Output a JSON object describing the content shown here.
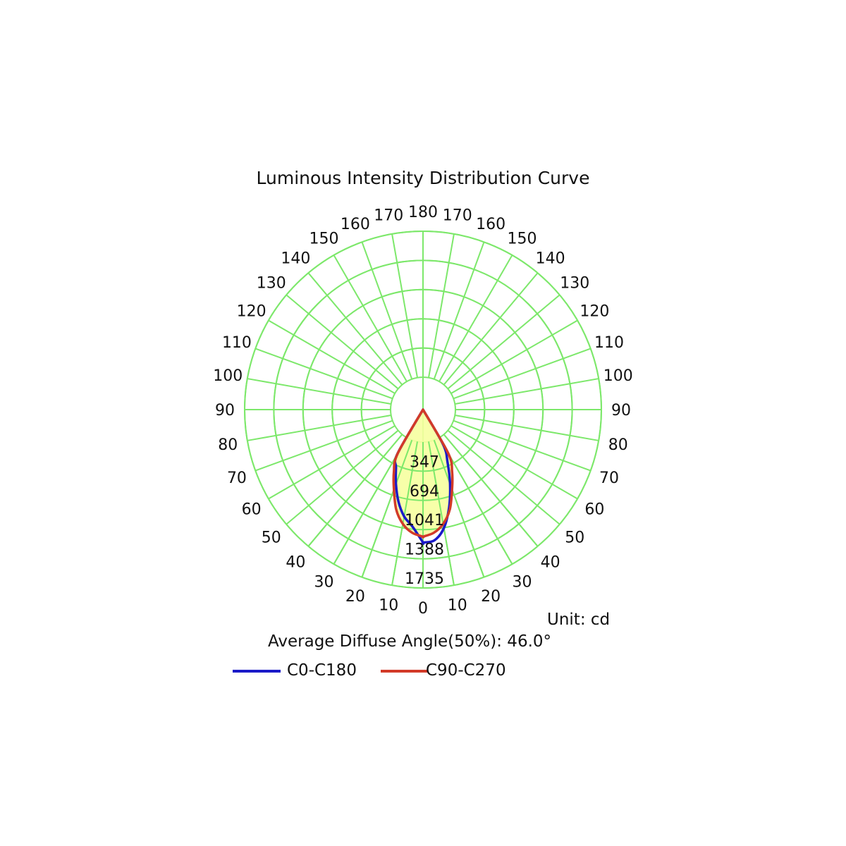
{
  "chart_data": {
    "type": "polar",
    "title": "Luminous Intensity Distribution Curve",
    "unit_label": "Unit: cd",
    "diffuse_label": "Average Diffuse Angle(50%): 46.0°",
    "radial_ticks": [
      347,
      694,
      1041,
      1388,
      1735
    ],
    "radial_max": 1735,
    "angle_labels": [
      0,
      10,
      20,
      30,
      40,
      50,
      60,
      70,
      80,
      90,
      100,
      110,
      120,
      130,
      140,
      150,
      160,
      170,
      180
    ],
    "grid": true,
    "series": [
      {
        "name": "C0-C180",
        "color": "#1a1ac8",
        "left": {
          "angles": [
            0,
            5,
            10,
            15,
            20,
            25,
            30,
            40
          ],
          "values": [
            1580,
            1400,
            1290,
            1130,
            940,
            760,
            610,
            0
          ]
        },
        "right": {
          "angles": [
            0,
            5,
            10,
            15,
            20,
            25,
            30,
            40
          ],
          "values": [
            1580,
            1560,
            1430,
            1200,
            940,
            690,
            480,
            0
          ]
        }
      },
      {
        "name": "C90-C270",
        "color": "#d23a28",
        "left": {
          "angles": [
            0,
            5,
            10,
            15,
            20,
            25,
            30,
            40
          ],
          "values": [
            1510,
            1470,
            1380,
            1230,
            1010,
            820,
            600,
            0
          ]
        },
        "right": {
          "angles": [
            0,
            5,
            10,
            15,
            20,
            25,
            30,
            40
          ],
          "values": [
            1510,
            1470,
            1380,
            1230,
            1010,
            820,
            600,
            0
          ]
        }
      }
    ]
  },
  "colors": {
    "grid": "#7de86b",
    "fill": "#f6ffa0",
    "text": "#111111"
  }
}
